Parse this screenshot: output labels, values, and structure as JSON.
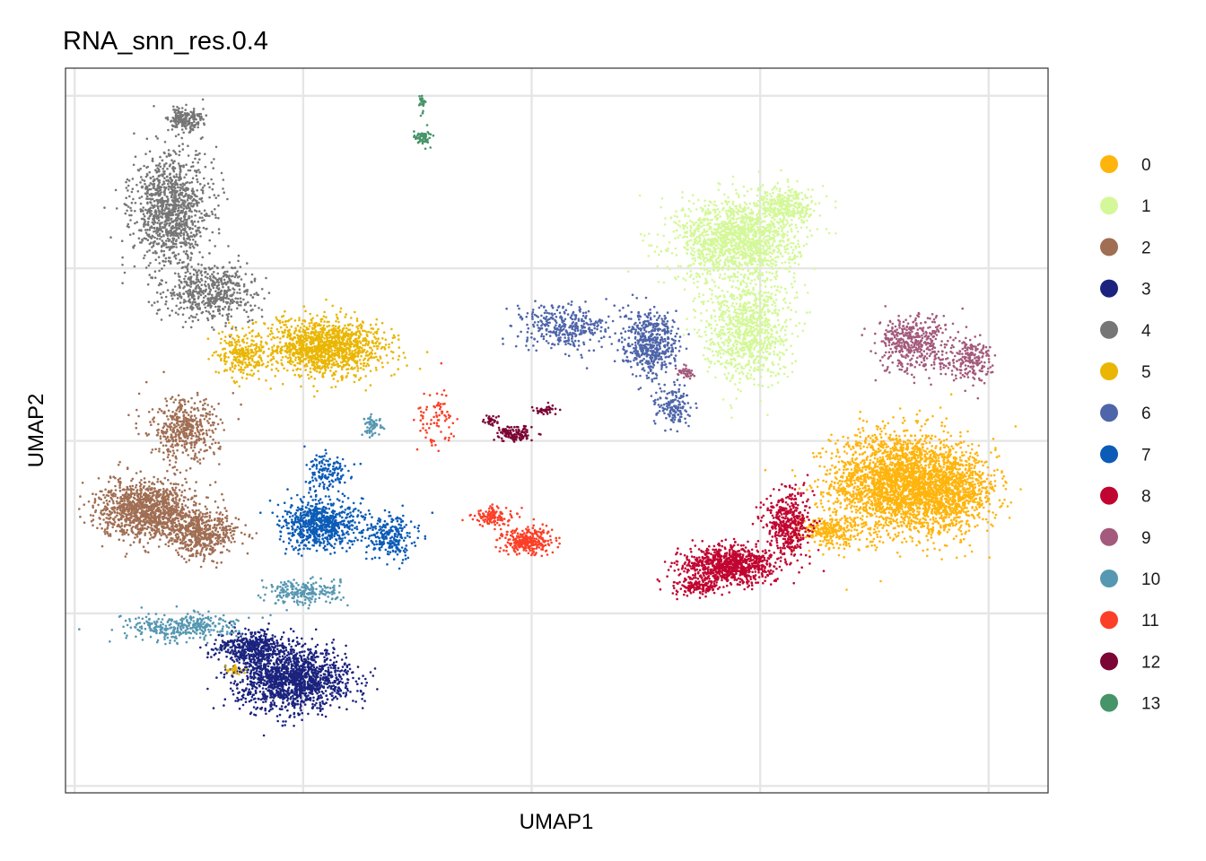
{
  "chart_data": {
    "type": "scatter",
    "title": "RNA_snn_res.0.4",
    "xlabel": "UMAP1",
    "ylabel": "UMAP2",
    "xlim": [
      -10.2,
      11.3
    ],
    "ylim": [
      -10.2,
      10.8
    ],
    "grid": true,
    "tick_labels_shown": false,
    "legend_position": "right",
    "clusters": [
      {
        "name": "0",
        "color": "#FFB40C",
        "blobs": [
          [
            8.0,
            -1.2,
            1.3,
            1.35,
            2400
          ],
          [
            9.2,
            -1.5,
            0.9,
            1.0,
            900
          ],
          [
            6.5,
            -2.6,
            0.6,
            0.4,
            250
          ]
        ]
      },
      {
        "name": "1",
        "color": "#D4F899",
        "blobs": [
          [
            4.5,
            5.8,
            1.2,
            1.1,
            1500
          ],
          [
            4.7,
            3.2,
            0.85,
            1.3,
            900
          ],
          [
            5.6,
            6.8,
            0.6,
            0.5,
            300
          ]
        ]
      },
      {
        "name": "2",
        "color": "#A06E53",
        "blobs": [
          [
            -8.4,
            -2.0,
            0.95,
            0.75,
            1200
          ],
          [
            -7.2,
            -2.7,
            0.7,
            0.6,
            500
          ],
          [
            -7.6,
            0.3,
            0.7,
            0.8,
            450
          ]
        ]
      },
      {
        "name": "3",
        "color": "#1B237E",
        "blobs": [
          [
            -5.2,
            -6.9,
            1.1,
            0.8,
            1500
          ],
          [
            -6.1,
            -6.0,
            0.7,
            0.45,
            450
          ]
        ]
      },
      {
        "name": "4",
        "color": "#767676",
        "blobs": [
          [
            -7.9,
            6.7,
            0.75,
            1.4,
            1100
          ],
          [
            -7.0,
            4.3,
            0.95,
            0.75,
            550
          ],
          [
            -7.6,
            9.3,
            0.35,
            0.35,
            200
          ]
        ]
      },
      {
        "name": "5",
        "color": "#EAB603",
        "blobs": [
          [
            -4.5,
            2.7,
            1.2,
            0.75,
            1300
          ],
          [
            -6.3,
            2.5,
            0.5,
            0.6,
            250
          ],
          [
            -6.5,
            -6.6,
            0.2,
            0.15,
            25
          ]
        ]
      },
      {
        "name": "6",
        "color": "#4E65A9",
        "blobs": [
          [
            2.6,
            2.8,
            0.55,
            0.8,
            500
          ],
          [
            0.7,
            3.3,
            0.9,
            0.6,
            350
          ],
          [
            3.1,
            1.0,
            0.35,
            0.5,
            150
          ]
        ]
      },
      {
        "name": "7",
        "color": "#0C5CB7",
        "blobs": [
          [
            -4.6,
            -2.4,
            0.8,
            0.65,
            700
          ],
          [
            -3.1,
            -2.8,
            0.5,
            0.55,
            250
          ],
          [
            -4.5,
            -0.9,
            0.4,
            0.5,
            150
          ]
        ]
      },
      {
        "name": "8",
        "color": "#C10531",
        "blobs": [
          [
            4.3,
            -3.6,
            0.9,
            0.5,
            900
          ],
          [
            5.6,
            -2.4,
            0.45,
            0.9,
            450
          ],
          [
            3.6,
            -4.2,
            0.5,
            0.3,
            150
          ]
        ]
      },
      {
        "name": "9",
        "color": "#A35A7C",
        "blobs": [
          [
            8.4,
            2.8,
            0.75,
            0.75,
            450
          ],
          [
            9.6,
            2.3,
            0.4,
            0.55,
            200
          ],
          [
            3.4,
            2.0,
            0.2,
            0.15,
            40
          ]
        ]
      },
      {
        "name": "10",
        "color": "#5697B1",
        "blobs": [
          [
            -7.7,
            -5.4,
            1.1,
            0.35,
            350
          ],
          [
            -5.0,
            -4.4,
            0.7,
            0.35,
            220
          ],
          [
            -3.5,
            0.4,
            0.2,
            0.3,
            60
          ]
        ]
      },
      {
        "name": "11",
        "color": "#FC3F27",
        "blobs": [
          [
            -0.1,
            -2.9,
            0.5,
            0.35,
            300
          ],
          [
            -0.8,
            -2.2,
            0.4,
            0.25,
            120
          ],
          [
            -2.1,
            0.6,
            0.4,
            0.8,
            80
          ]
        ]
      },
      {
        "name": "12",
        "color": "#7B0534",
        "blobs": [
          [
            -0.4,
            0.2,
            0.35,
            0.22,
            120
          ],
          [
            0.3,
            0.9,
            0.25,
            0.15,
            40
          ],
          [
            -0.9,
            0.6,
            0.2,
            0.12,
            30
          ]
        ]
      },
      {
        "name": "13",
        "color": "#469468",
        "blobs": [
          [
            -2.4,
            8.8,
            0.2,
            0.2,
            60
          ],
          [
            -2.4,
            9.8,
            0.05,
            0.25,
            25
          ]
        ]
      }
    ]
  }
}
